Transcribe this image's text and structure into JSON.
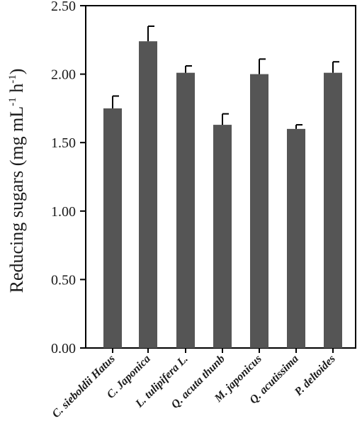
{
  "chart_data": {
    "type": "bar",
    "categories": [
      "C. sieboldii Hatus",
      "C. Japonica",
      "L. tulipifera L.",
      "Q. acuta thunb",
      "M. japonicus",
      "Q. acutissima",
      "P. deltoides"
    ],
    "values": [
      1.75,
      2.24,
      2.01,
      1.63,
      2.0,
      1.6,
      2.01
    ],
    "errors": [
      0.09,
      0.11,
      0.05,
      0.08,
      0.11,
      0.03,
      0.08
    ],
    "ylim": [
      0,
      2.5
    ],
    "yticks": [
      "0.00",
      "0.50",
      "1.00",
      "1.50",
      "2.00",
      "2.50"
    ],
    "ylabel_main": "Reducing sugars (mg mL",
    "ylabel_sup1": "-1",
    "ylabel_mid": " h",
    "ylabel_sup2": "-1",
    "ylabel_end": ")",
    "xlabel": "",
    "grid": false,
    "colors": {
      "bar": "#555555",
      "axis": "#000000",
      "error": "#000000"
    }
  }
}
